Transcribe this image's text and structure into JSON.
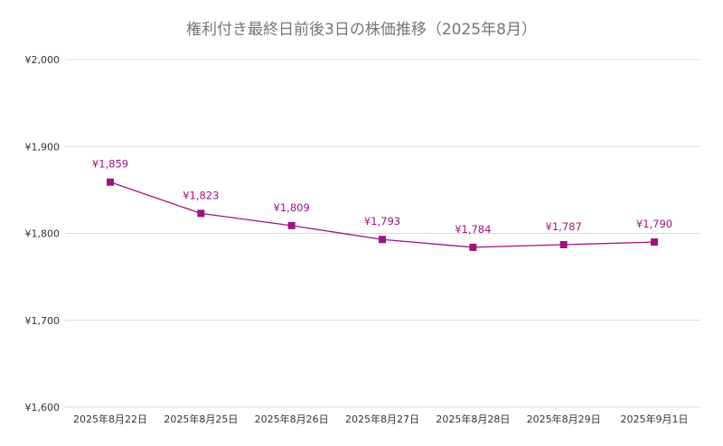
{
  "chart_data": {
    "type": "line",
    "title": "権利付き最終日前後3日の株価推移（2025年8月）",
    "xlabel": "",
    "ylabel": "",
    "categories": [
      "2025年8月22日",
      "2025年8月25日",
      "2025年8月26日",
      "2025年8月27日",
      "2025年8月28日",
      "2025年8月29日",
      "2025年9月1日"
    ],
    "series": [
      {
        "values": [
          1859,
          1823,
          1809,
          1793,
          1784,
          1787,
          1790
        ],
        "labels": [
          "¥1,859",
          "¥1,823",
          "¥1,809",
          "¥1,793",
          "¥1,784",
          "¥1,787",
          "¥1,790"
        ],
        "color": "#a0137f"
      }
    ],
    "ylim": [
      1600,
      2000
    ],
    "yticks": [
      1600,
      1700,
      1800,
      1900,
      2000
    ],
    "ytick_labels": [
      "¥1,600",
      "¥1,700",
      "¥1,800",
      "¥1,900",
      "¥2,000"
    ],
    "grid": true,
    "legend": "none",
    "marker": "square"
  }
}
